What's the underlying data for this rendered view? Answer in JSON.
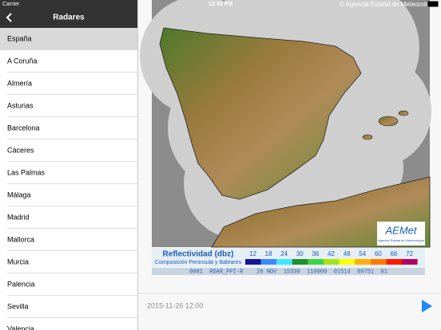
{
  "status_bar": {
    "carrier": "Carrier",
    "time": "12:45 PM"
  },
  "sidebar": {
    "title": "Radares",
    "items": [
      "España",
      "A Coruña",
      "Almería",
      "Asturias",
      "Barcelona",
      "Cáceres",
      "Las Palmas",
      "Málaga",
      "Madrid",
      "Mallorca",
      "Murcia",
      "Palencia",
      "Sevilla",
      "Valencia"
    ]
  },
  "map": {
    "credit": "© Agencia Estatal de Meteorología",
    "logo": {
      "name": "AEMet",
      "subtitle": "Agencia Estatal de Meteorología"
    },
    "legend": {
      "title": "Reflectividad (dbz)",
      "subtitle": "Composición Peninsula y Baleares",
      "levels": [
        12,
        18,
        24,
        30,
        36,
        42,
        48,
        54,
        60,
        66,
        72
      ],
      "colors": [
        "#15159e",
        "#3a8bff",
        "#3ee8ff",
        "#1f8f2a",
        "#3fd23f",
        "#a4e41c",
        "#ffff00",
        "#ffb000",
        "#ff7a00",
        "#ff1a00",
        "#b40060"
      ]
    },
    "info_strip": "0001  RDAR_PPI-R    26 NOV  15330  110000  01514  09751  01"
  },
  "footer": {
    "timestamp": "2015-11-26 12:00"
  }
}
